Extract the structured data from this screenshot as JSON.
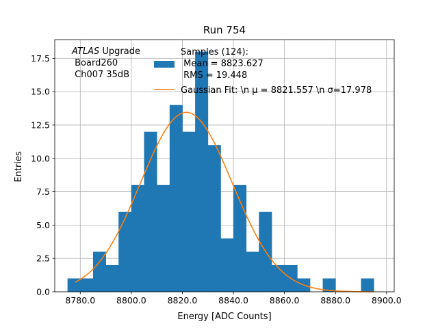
{
  "chart_data": {
    "type": "bar",
    "title": "Run 754",
    "xlabel": "Energy [ADC Counts]",
    "ylabel": "Entries",
    "xlim": [
      8770.0,
      8903.0
    ],
    "ylim": [
      0.0,
      18.9
    ],
    "grid": true,
    "xticks": [
      8780.0,
      8800.0,
      8820.0,
      8840.0,
      8860.0,
      8880.0,
      8900.0
    ],
    "xtick_labels": [
      "8780.0",
      "8800.0",
      "8820.0",
      "8840.0",
      "8860.0",
      "8880.0",
      "8900.0"
    ],
    "yticks": [
      0.0,
      2.5,
      5.0,
      7.5,
      10.0,
      12.5,
      15.0,
      17.5
    ],
    "ytick_labels": [
      "0.0",
      "2.5",
      "5.0",
      "7.5",
      "10.0",
      "12.5",
      "15.0",
      "17.5"
    ],
    "bin_edges": [
      8775,
      8780,
      8785,
      8790,
      8795,
      8800,
      8805,
      8810,
      8815,
      8820,
      8825,
      8830,
      8835,
      8840,
      8845,
      8850,
      8855,
      8860,
      8865,
      8870,
      8875,
      8880,
      8885,
      8890,
      8895
    ],
    "bin_counts": [
      1,
      1,
      3,
      2,
      6,
      8,
      12,
      8,
      14,
      12,
      18,
      11,
      4,
      8,
      3,
      6,
      2,
      2,
      1,
      0,
      1,
      0,
      0,
      1
    ],
    "legend_placement": "upper-center",
    "series": [
      {
        "kind": "histogram",
        "color": "#1f77b4",
        "legend_lines": [
          "Samples (124):",
          " Mean = 8823.627",
          " RMS = 19.448"
        ]
      },
      {
        "kind": "line",
        "color": "#ff7f0e",
        "legend_text": "Gaussian Fit: \\n μ = 8821.557 \\n σ=17.978",
        "fit": {
          "amplitude": 13.45,
          "mu": 8821.557,
          "sigma": 17.978,
          "x_range": [
            8778,
            8895
          ]
        }
      }
    ],
    "annotation": {
      "line1_italic": "ATLAS",
      "line1_rest": " Upgrade",
      "line2": " Board260",
      "line3": " Ch007 35dB"
    }
  }
}
